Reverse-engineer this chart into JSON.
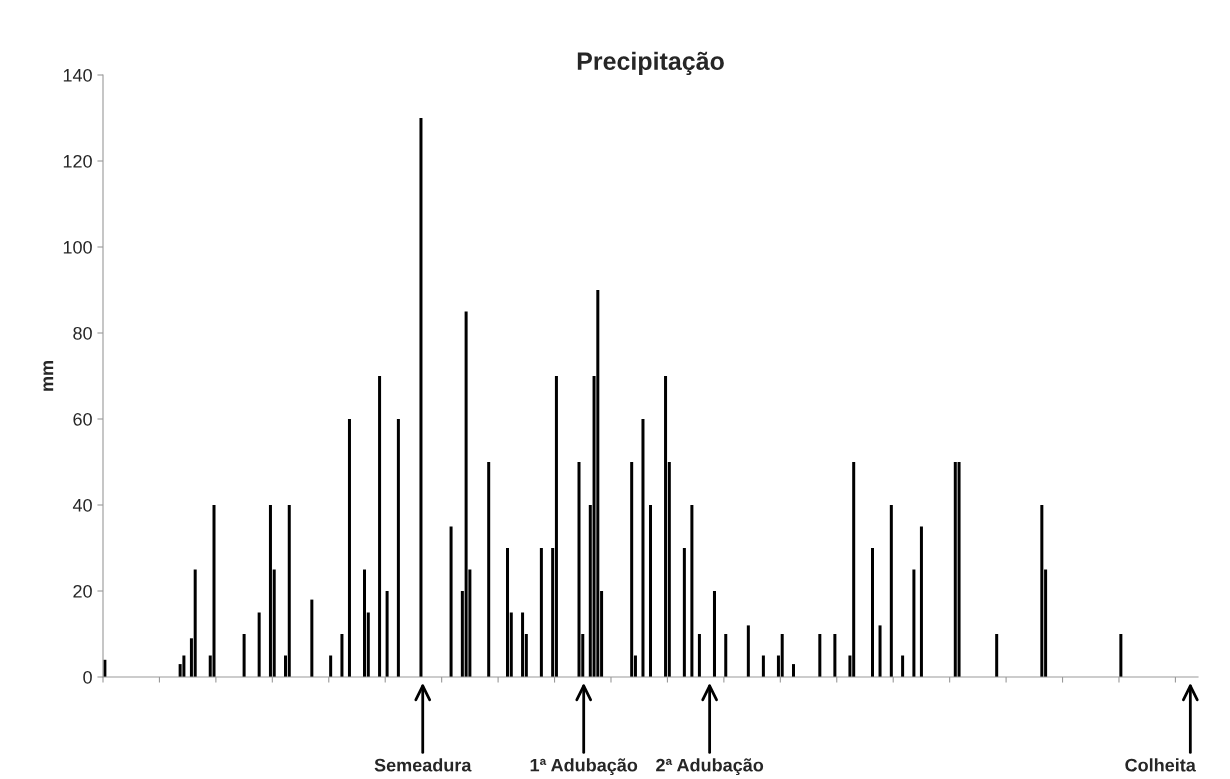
{
  "chart_data": {
    "type": "bar",
    "title": "Precipitação",
    "ylabel": "mm",
    "color": "#000000",
    "categories": [
      null,
      null,
      null,
      null,
      null,
      null,
      null,
      null,
      null,
      null,
      null,
      null,
      null,
      null,
      null,
      null,
      null,
      null,
      null,
      null,
      null,
      null,
      null,
      null,
      null,
      null,
      null,
      null,
      null,
      null,
      null,
      null,
      null,
      null,
      null,
      null,
      null,
      null,
      null,
      null,
      null,
      null,
      null,
      null,
      null,
      null,
      null,
      null,
      null,
      null,
      null,
      null,
      null,
      null,
      null,
      null,
      null,
      null,
      null,
      null,
      null,
      null,
      null,
      null,
      null,
      null,
      null,
      null,
      null,
      null,
      null,
      null,
      null,
      null,
      null,
      null,
      null,
      null,
      null,
      null,
      null,
      null,
      null,
      null,
      null,
      null,
      null,
      null,
      null,
      null,
      null,
      null,
      null,
      null,
      null,
      null,
      null,
      null,
      null,
      null,
      null,
      null,
      null,
      null,
      null,
      null,
      null,
      null,
      null,
      null,
      null,
      null,
      null,
      null,
      null,
      null,
      null,
      null,
      null,
      null,
      null,
      null,
      null,
      null,
      null,
      null,
      null,
      null,
      null,
      null,
      null,
      null,
      null,
      null,
      null,
      null,
      null,
      null,
      null,
      null,
      null,
      null,
      null,
      null,
      null,
      null,
      null,
      null,
      null,
      null,
      null,
      null,
      null,
      null,
      null,
      null,
      null,
      null,
      null,
      null,
      null,
      null,
      null,
      null,
      null,
      null,
      null,
      null,
      null,
      null,
      null,
      null,
      null,
      null,
      null,
      null,
      null,
      null,
      null,
      null,
      null,
      null,
      null,
      null,
      null,
      null,
      null,
      null,
      null,
      null,
      null,
      null,
      null,
      null,
      null,
      null,
      null,
      null,
      null,
      null,
      null,
      null,
      null,
      null,
      null,
      null,
      null,
      null,
      null,
      null,
      null,
      null,
      null,
      null,
      null,
      null,
      null,
      null,
      null,
      null,
      null,
      null,
      null,
      null,
      null,
      null,
      null,
      null,
      null,
      null,
      null,
      null,
      null,
      null,
      null,
      null,
      null,
      null,
      null,
      null,
      null,
      null,
      null,
      null,
      null,
      null,
      null,
      null,
      null,
      null,
      null,
      null,
      null,
      null,
      null,
      null,
      null,
      null,
      null,
      null,
      null,
      null,
      null,
      null,
      null,
      null,
      null,
      null,
      null,
      null,
      null,
      null,
      null,
      null,
      null,
      null,
      null,
      null,
      null,
      null,
      null,
      null,
      null,
      null,
      null,
      null,
      null,
      null,
      null,
      null,
      null
    ],
    "values": [
      4,
      0,
      0,
      0,
      0,
      0,
      0,
      0,
      0,
      0,
      0,
      0,
      0,
      0,
      0,
      0,
      0,
      0,
      0,
      0,
      3,
      5,
      0,
      9,
      25,
      0,
      0,
      0,
      5,
      40,
      0,
      0,
      0,
      0,
      0,
      0,
      0,
      10,
      0,
      0,
      0,
      15,
      0,
      0,
      40,
      25,
      0,
      0,
      5,
      40,
      0,
      0,
      0,
      0,
      0,
      18,
      0,
      0,
      0,
      0,
      5,
      0,
      0,
      10,
      0,
      60,
      0,
      0,
      0,
      25,
      15,
      0,
      0,
      70,
      0,
      20,
      0,
      0,
      60,
      0,
      0,
      0,
      0,
      0,
      130,
      0,
      0,
      0,
      0,
      0,
      0,
      0,
      35,
      0,
      0,
      20,
      85,
      25,
      0,
      0,
      0,
      0,
      50,
      0,
      0,
      0,
      0,
      30,
      15,
      0,
      0,
      15,
      10,
      0,
      0,
      0,
      30,
      0,
      0,
      30,
      70,
      0,
      0,
      0,
      0,
      0,
      50,
      10,
      0,
      40,
      70,
      90,
      20,
      0,
      0,
      0,
      0,
      0,
      0,
      0,
      50,
      5,
      0,
      60,
      0,
      40,
      0,
      0,
      0,
      70,
      50,
      0,
      0,
      0,
      30,
      0,
      40,
      0,
      10,
      0,
      0,
      0,
      20,
      0,
      0,
      10,
      0,
      0,
      0,
      0,
      0,
      12,
      0,
      0,
      0,
      5,
      0,
      0,
      0,
      5,
      10,
      0,
      0,
      3,
      0,
      0,
      0,
      0,
      0,
      0,
      10,
      0,
      0,
      0,
      10,
      0,
      0,
      0,
      5,
      50,
      0,
      0,
      0,
      0,
      30,
      0,
      12,
      0,
      0,
      40,
      0,
      0,
      5,
      0,
      0,
      25,
      0,
      35,
      0,
      0,
      0,
      0,
      0,
      0,
      0,
      0,
      50,
      50,
      0,
      0,
      0,
      0,
      0,
      0,
      0,
      0,
      0,
      10,
      0,
      0,
      0,
      0,
      0,
      0,
      0,
      0,
      0,
      0,
      0,
      40,
      25,
      0,
      0,
      0,
      0,
      0,
      0,
      0,
      0,
      0,
      0,
      0,
      0,
      0,
      0,
      0,
      0,
      0,
      0,
      0,
      10,
      0,
      0,
      0,
      0,
      0,
      0,
      0,
      0,
      0,
      0,
      0,
      0,
      0,
      0,
      0,
      0,
      0,
      0,
      0,
      0
    ],
    "ylim": [
      0,
      140
    ],
    "yticks": [
      0,
      20,
      40,
      60,
      80,
      100,
      120,
      140
    ],
    "annotations": [
      "Semeadura",
      "1ª Adubação",
      "2ª Adubação",
      "Colheita"
    ]
  }
}
